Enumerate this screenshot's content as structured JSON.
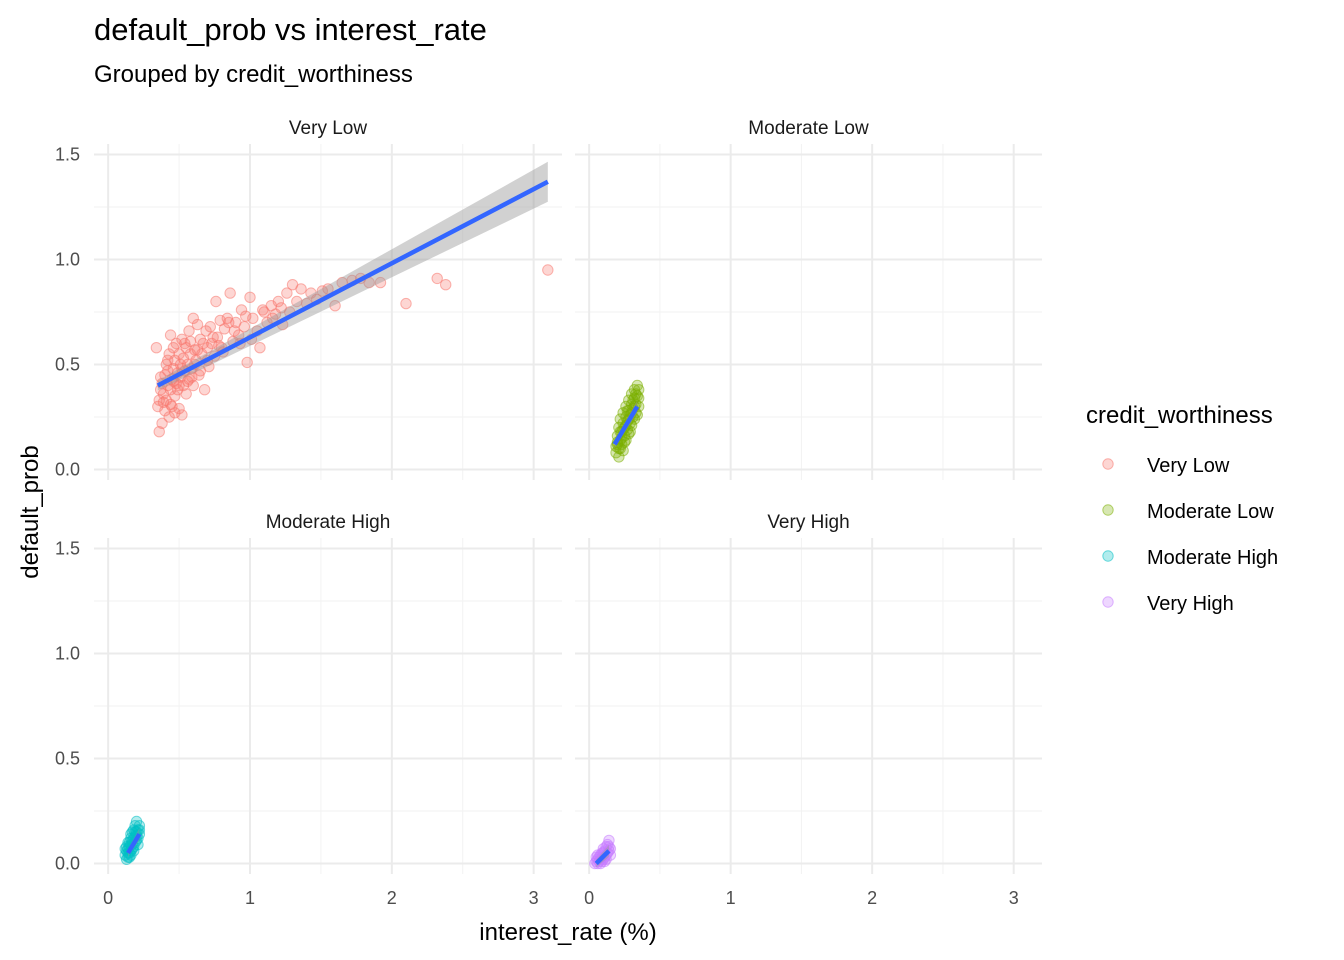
{
  "title": "default_prob vs interest_rate",
  "subtitle": "Grouped by credit_worthiness",
  "chart_data": {
    "type": "scatter",
    "facet_by": "credit_worthiness",
    "xlabel": "interest_rate (%)",
    "ylabel": "default_prob",
    "xlim": [
      -0.1,
      3.2
    ],
    "ylim": [
      -0.05,
      1.55
    ],
    "x_ticks": [
      0,
      1,
      2,
      3
    ],
    "x_tick_labels": [
      "0",
      "1",
      "2",
      "3"
    ],
    "y_ticks": [
      0,
      0.5,
      1.0,
      1.5
    ],
    "y_tick_labels": [
      "0.0",
      "0.5",
      "1.0",
      "1.5"
    ],
    "grid": true,
    "point_opacity": 0.3,
    "legend": {
      "title": "credit_worthiness",
      "position": "right",
      "entries": [
        "Very Low",
        "Moderate Low",
        "Moderate High",
        "Very High"
      ]
    },
    "panels": [
      {
        "name": "Very Low",
        "color": "#F8766D",
        "trend": {
          "x": [
            0.35,
            3.1
          ],
          "y": [
            0.4,
            1.37
          ],
          "color": "#3366FF",
          "se_band": true
        },
        "points": [
          [
            0.34,
            0.58
          ],
          [
            0.36,
            0.18
          ],
          [
            0.38,
            0.22
          ],
          [
            0.35,
            0.3
          ],
          [
            0.36,
            0.33
          ],
          [
            0.37,
            0.38
          ],
          [
            0.38,
            0.41
          ],
          [
            0.39,
            0.36
          ],
          [
            0.4,
            0.45
          ],
          [
            0.4,
            0.28
          ],
          [
            0.41,
            0.5
          ],
          [
            0.41,
            0.33
          ],
          [
            0.42,
            0.4
          ],
          [
            0.42,
            0.47
          ],
          [
            0.43,
            0.25
          ],
          [
            0.43,
            0.55
          ],
          [
            0.44,
            0.38
          ],
          [
            0.44,
            0.64
          ],
          [
            0.45,
            0.43
          ],
          [
            0.45,
            0.3
          ],
          [
            0.46,
            0.48
          ],
          [
            0.46,
            0.58
          ],
          [
            0.47,
            0.35
          ],
          [
            0.47,
            0.52
          ],
          [
            0.48,
            0.41
          ],
          [
            0.48,
            0.6
          ],
          [
            0.49,
            0.46
          ],
          [
            0.49,
            0.38
          ],
          [
            0.5,
            0.55
          ],
          [
            0.5,
            0.29
          ],
          [
            0.51,
            0.44
          ],
          [
            0.51,
            0.5
          ],
          [
            0.52,
            0.26
          ],
          [
            0.52,
            0.62
          ],
          [
            0.53,
            0.4
          ],
          [
            0.53,
            0.53
          ],
          [
            0.54,
            0.47
          ],
          [
            0.55,
            0.58
          ],
          [
            0.55,
            0.36
          ],
          [
            0.56,
            0.5
          ],
          [
            0.57,
            0.43
          ],
          [
            0.58,
            0.61
          ],
          [
            0.58,
            0.55
          ],
          [
            0.59,
            0.48
          ],
          [
            0.6,
            0.72
          ],
          [
            0.6,
            0.4
          ],
          [
            0.61,
            0.57
          ],
          [
            0.62,
            0.52
          ],
          [
            0.63,
            0.69
          ],
          [
            0.64,
            0.45
          ],
          [
            0.65,
            0.62
          ],
          [
            0.66,
            0.55
          ],
          [
            0.68,
            0.38
          ],
          [
            0.69,
            0.66
          ],
          [
            0.7,
            0.58
          ],
          [
            0.71,
            0.49
          ],
          [
            0.72,
            0.68
          ],
          [
            0.73,
            0.6
          ],
          [
            0.75,
            0.54
          ],
          [
            0.76,
            0.8
          ],
          [
            0.77,
            0.63
          ],
          [
            0.79,
            0.71
          ],
          [
            0.8,
            0.58
          ],
          [
            0.82,
            0.67
          ],
          [
            0.84,
            0.72
          ],
          [
            0.86,
            0.84
          ],
          [
            0.88,
            0.61
          ],
          [
            0.9,
            0.7
          ],
          [
            0.92,
            0.64
          ],
          [
            0.94,
            0.76
          ],
          [
            0.96,
            0.68
          ],
          [
            0.98,
            0.51
          ],
          [
            1.0,
            0.82
          ],
          [
            1.02,
            0.72
          ],
          [
            1.05,
            0.66
          ],
          [
            1.07,
            0.58
          ],
          [
            1.09,
            0.76
          ],
          [
            1.12,
            0.7
          ],
          [
            1.15,
            0.78
          ],
          [
            1.18,
            0.74
          ],
          [
            1.2,
            0.8
          ],
          [
            1.23,
            0.69
          ],
          [
            1.26,
            0.84
          ],
          [
            1.28,
            0.75
          ],
          [
            1.3,
            0.88
          ],
          [
            1.33,
            0.8
          ],
          [
            1.36,
            0.86
          ],
          [
            1.4,
            0.79
          ],
          [
            1.43,
            0.84
          ],
          [
            1.47,
            0.81
          ],
          [
            1.51,
            0.85
          ],
          [
            1.55,
            0.86
          ],
          [
            1.6,
            0.78
          ],
          [
            1.65,
            0.89
          ],
          [
            1.72,
            0.9
          ],
          [
            1.78,
            0.91
          ],
          [
            1.84,
            0.89
          ],
          [
            1.92,
            0.89
          ],
          [
            2.1,
            0.79
          ],
          [
            2.32,
            0.91
          ],
          [
            2.38,
            0.88
          ],
          [
            3.1,
            0.95
          ],
          [
            0.37,
            0.44
          ],
          [
            0.39,
            0.32
          ],
          [
            0.42,
            0.52
          ],
          [
            0.44,
            0.31
          ],
          [
            0.46,
            0.42
          ],
          [
            0.47,
            0.27
          ],
          [
            0.5,
            0.4
          ],
          [
            0.52,
            0.48
          ],
          [
            0.54,
            0.6
          ],
          [
            0.56,
            0.42
          ],
          [
            0.57,
            0.66
          ],
          [
            0.59,
            0.44
          ],
          [
            0.61,
            0.5
          ],
          [
            0.63,
            0.57
          ],
          [
            0.65,
            0.47
          ],
          [
            0.67,
            0.6
          ],
          [
            0.7,
            0.52
          ],
          [
            0.74,
            0.63
          ],
          [
            0.78,
            0.59
          ],
          [
            0.81,
            0.56
          ],
          [
            0.85,
            0.7
          ],
          [
            0.89,
            0.66
          ],
          [
            0.93,
            0.6
          ],
          [
            0.97,
            0.73
          ],
          [
            1.01,
            0.62
          ],
          [
            1.1,
            0.75
          ],
          [
            1.16,
            0.72
          ],
          [
            1.22,
            0.77
          ]
        ]
      },
      {
        "name": "Moderate Low",
        "color": "#7CAE00",
        "trend": {
          "x": [
            0.18,
            0.34
          ],
          "y": [
            0.12,
            0.3
          ],
          "color": "#3366FF",
          "se_band": true
        },
        "points": [
          [
            0.19,
            0.08
          ],
          [
            0.2,
            0.12
          ],
          [
            0.2,
            0.16
          ],
          [
            0.21,
            0.1
          ],
          [
            0.21,
            0.2
          ],
          [
            0.22,
            0.14
          ],
          [
            0.22,
            0.24
          ],
          [
            0.23,
            0.18
          ],
          [
            0.23,
            0.12
          ],
          [
            0.24,
            0.22
          ],
          [
            0.24,
            0.27
          ],
          [
            0.25,
            0.16
          ],
          [
            0.25,
            0.2
          ],
          [
            0.26,
            0.25
          ],
          [
            0.26,
            0.3
          ],
          [
            0.27,
            0.19
          ],
          [
            0.27,
            0.23
          ],
          [
            0.28,
            0.28
          ],
          [
            0.28,
            0.33
          ],
          [
            0.29,
            0.22
          ],
          [
            0.29,
            0.26
          ],
          [
            0.3,
            0.31
          ],
          [
            0.3,
            0.36
          ],
          [
            0.31,
            0.25
          ],
          [
            0.31,
            0.29
          ],
          [
            0.32,
            0.34
          ],
          [
            0.32,
            0.38
          ],
          [
            0.33,
            0.27
          ],
          [
            0.33,
            0.31
          ],
          [
            0.34,
            0.35
          ],
          [
            0.34,
            0.4
          ],
          [
            0.35,
            0.3
          ],
          [
            0.35,
            0.34
          ],
          [
            0.21,
            0.06
          ],
          [
            0.22,
            0.18
          ],
          [
            0.24,
            0.09
          ],
          [
            0.26,
            0.14
          ],
          [
            0.28,
            0.17
          ],
          [
            0.3,
            0.21
          ],
          [
            0.32,
            0.24
          ],
          [
            0.2,
            0.13
          ],
          [
            0.23,
            0.15
          ],
          [
            0.25,
            0.13
          ],
          [
            0.27,
            0.28
          ],
          [
            0.29,
            0.18
          ],
          [
            0.31,
            0.33
          ],
          [
            0.33,
            0.36
          ],
          [
            0.34,
            0.26
          ],
          [
            0.22,
            0.1
          ],
          [
            0.24,
            0.19
          ],
          [
            0.26,
            0.21
          ],
          [
            0.28,
            0.24
          ],
          [
            0.3,
            0.27
          ],
          [
            0.32,
            0.3
          ],
          [
            0.35,
            0.38
          ],
          [
            0.19,
            0.11
          ]
        ]
      },
      {
        "name": "Moderate High",
        "color": "#00BFC4",
        "trend": {
          "x": [
            0.14,
            0.22
          ],
          "y": [
            0.05,
            0.14
          ],
          "color": "#3366FF",
          "se_band": true
        },
        "points": [
          [
            0.12,
            0.04
          ],
          [
            0.13,
            0.06
          ],
          [
            0.13,
            0.08
          ],
          [
            0.14,
            0.03
          ],
          [
            0.14,
            0.07
          ],
          [
            0.15,
            0.05
          ],
          [
            0.15,
            0.1
          ],
          [
            0.16,
            0.06
          ],
          [
            0.16,
            0.09
          ],
          [
            0.16,
            0.12
          ],
          [
            0.17,
            0.07
          ],
          [
            0.17,
            0.11
          ],
          [
            0.17,
            0.15
          ],
          [
            0.18,
            0.08
          ],
          [
            0.18,
            0.12
          ],
          [
            0.18,
            0.16
          ],
          [
            0.19,
            0.1
          ],
          [
            0.19,
            0.13
          ],
          [
            0.19,
            0.18
          ],
          [
            0.2,
            0.11
          ],
          [
            0.2,
            0.15
          ],
          [
            0.2,
            0.2
          ],
          [
            0.21,
            0.12
          ],
          [
            0.21,
            0.16
          ],
          [
            0.22,
            0.14
          ],
          [
            0.22,
            0.18
          ],
          [
            0.13,
            0.02
          ],
          [
            0.14,
            0.05
          ],
          [
            0.15,
            0.03
          ],
          [
            0.16,
            0.04
          ],
          [
            0.17,
            0.09
          ],
          [
            0.18,
            0.06
          ],
          [
            0.12,
            0.07
          ],
          [
            0.15,
            0.08
          ],
          [
            0.19,
            0.15
          ],
          [
            0.21,
            0.09
          ],
          [
            0.14,
            0.1
          ],
          [
            0.16,
            0.14
          ],
          [
            0.2,
            0.13
          ],
          [
            0.22,
            0.16
          ]
        ]
      },
      {
        "name": "Very High",
        "color": "#C77CFF",
        "trend": {
          "x": [
            0.05,
            0.14
          ],
          "y": [
            0.0,
            0.06
          ],
          "color": "#3366FF",
          "se_band": true
        },
        "points": [
          [
            0.04,
            0.0
          ],
          [
            0.05,
            0.01
          ],
          [
            0.06,
            0.0
          ],
          [
            0.06,
            0.02
          ],
          [
            0.07,
            0.01
          ],
          [
            0.07,
            0.03
          ],
          [
            0.08,
            0.02
          ],
          [
            0.08,
            0.04
          ],
          [
            0.09,
            0.01
          ],
          [
            0.09,
            0.03
          ],
          [
            0.1,
            0.02
          ],
          [
            0.1,
            0.05
          ],
          [
            0.11,
            0.03
          ],
          [
            0.11,
            0.06
          ],
          [
            0.12,
            0.04
          ],
          [
            0.12,
            0.08
          ],
          [
            0.13,
            0.05
          ],
          [
            0.13,
            0.09
          ],
          [
            0.14,
            0.06
          ],
          [
            0.14,
            0.11
          ],
          [
            0.15,
            0.07
          ],
          [
            0.15,
            0.04
          ],
          [
            0.05,
            0.03
          ],
          [
            0.08,
            0.0
          ],
          [
            0.1,
            0.07
          ],
          [
            0.12,
            0.02
          ],
          [
            0.14,
            0.08
          ],
          [
            0.06,
            0.04
          ],
          [
            0.09,
            0.05
          ],
          [
            0.11,
            0.01
          ]
        ]
      }
    ]
  }
}
